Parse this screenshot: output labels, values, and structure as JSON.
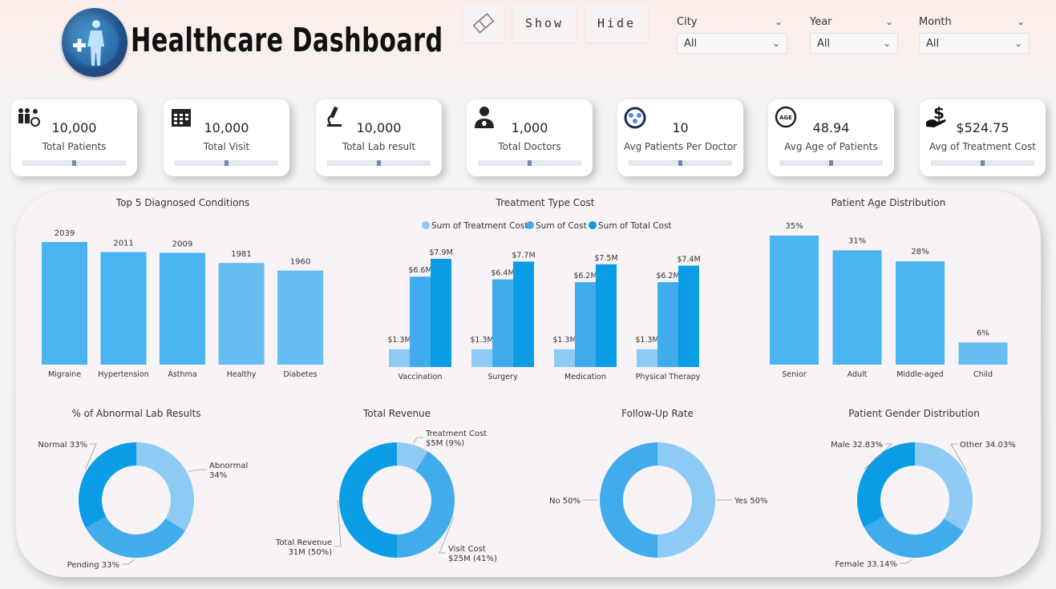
{
  "header": {
    "title": "Healthcare Dashboard",
    "show_label": "Show",
    "hide_label": "Hide"
  },
  "filters": [
    {
      "label": "City",
      "value": "All"
    },
    {
      "label": "Year",
      "value": "All"
    },
    {
      "label": "Month",
      "value": "All"
    }
  ],
  "kpis": [
    {
      "value": "10,000",
      "label": "Total Patients",
      "icon": "patients-icon",
      "slider": 0.5
    },
    {
      "value": "10,000",
      "label": "Total Visit",
      "icon": "calendar-icon",
      "slider": 0.5
    },
    {
      "value": "10,000",
      "label": "Total Lab result",
      "icon": "microscope-icon",
      "slider": 0.5
    },
    {
      "value": "1,000",
      "label": "Total Doctors",
      "icon": "doctor-icon",
      "slider": 0.5
    },
    {
      "value": "10",
      "label": "Avg Patients Per Doctor",
      "icon": "stethoscope-icon",
      "slider": 0.5
    },
    {
      "value": "48.94",
      "label": "Avg Age of Patients",
      "icon": "age-icon",
      "slider": 0.5
    },
    {
      "value": "$524.75",
      "label": "Avg of Treatment Cost",
      "icon": "money-hand-icon",
      "slider": 0.5
    }
  ],
  "icon_text": {
    "age": "AGE"
  },
  "colors": {
    "bar_light": "#66bdf1",
    "bar_mid": "#49b4ef",
    "bar_dark": "#079de8",
    "series1": "#8dcbf5",
    "series2": "#40acec",
    "series3": "#0b9ce6"
  },
  "chart_data": [
    {
      "type": "bar",
      "title": "Top 5 Diagnosed Conditions",
      "categories": [
        "Migraine",
        "Hypertension",
        "Asthma",
        "Healthy",
        "Diabetes"
      ],
      "values": [
        2039,
        2011,
        2009,
        1981,
        1960
      ],
      "labels": [
        "2039",
        "2011",
        "2009",
        "1981",
        "1960"
      ]
    },
    {
      "type": "bar",
      "title": "Treatment Type Cost",
      "categories": [
        "Vaccination",
        "Surgery",
        "Medication",
        "Physical Therapy"
      ],
      "legend": "top",
      "series": [
        {
          "name": "Sum of Treatment Cost",
          "values": [
            1.3,
            1.3,
            1.3,
            1.3
          ],
          "labels": [
            "$1.3M",
            "$1.3M",
            "$1.3M",
            "$1.3M"
          ]
        },
        {
          "name": "Sum of Cost",
          "values": [
            6.6,
            6.4,
            6.2,
            6.2
          ],
          "labels": [
            "$6.6M",
            "$6.4M",
            "$6.2M",
            "$6.2M"
          ]
        },
        {
          "name": "Sum of Total Cost",
          "values": [
            7.9,
            7.7,
            7.5,
            7.4
          ],
          "labels": [
            "$7.9M",
            "$7.7M",
            "$7.5M",
            "$7.4M"
          ]
        }
      ]
    },
    {
      "type": "bar",
      "title": "Patient Age Distribution",
      "categories": [
        "Senior",
        "Adult",
        "Middle-aged",
        "Child"
      ],
      "values": [
        35,
        31,
        28,
        6
      ],
      "labels": [
        "35%",
        "31%",
        "28%",
        "6%"
      ]
    },
    {
      "type": "pie",
      "title": "% of Abnormal Lab Results",
      "slices": [
        {
          "label": "Abnormal",
          "value": 34,
          "text": "34%"
        },
        {
          "label": "Pending",
          "value": 33,
          "text": "33%"
        },
        {
          "label": "Normal",
          "value": 33,
          "text": "33%"
        }
      ]
    },
    {
      "type": "pie",
      "title": "Total Revenue",
      "slices": [
        {
          "label": "Treatment Cost",
          "value": 9,
          "text": "$5M (9%)"
        },
        {
          "label": "Visit Cost",
          "value": 41,
          "text": "$25M (41%)"
        },
        {
          "label": "Total Revenue",
          "value": 50,
          "text": "31M (50%)"
        }
      ]
    },
    {
      "type": "pie",
      "title": "Follow-Up Rate",
      "slices": [
        {
          "label": "Yes",
          "value": 50,
          "text": "50%"
        },
        {
          "label": "No",
          "value": 50,
          "text": "50%"
        }
      ]
    },
    {
      "type": "pie",
      "title": "Patient Gender Distribution",
      "slices": [
        {
          "label": "Other",
          "value": 34.03,
          "text": "34.03%"
        },
        {
          "label": "Female",
          "value": 33.14,
          "text": "33.14%"
        },
        {
          "label": "Male",
          "value": 32.83,
          "text": "32.83%"
        }
      ]
    }
  ]
}
